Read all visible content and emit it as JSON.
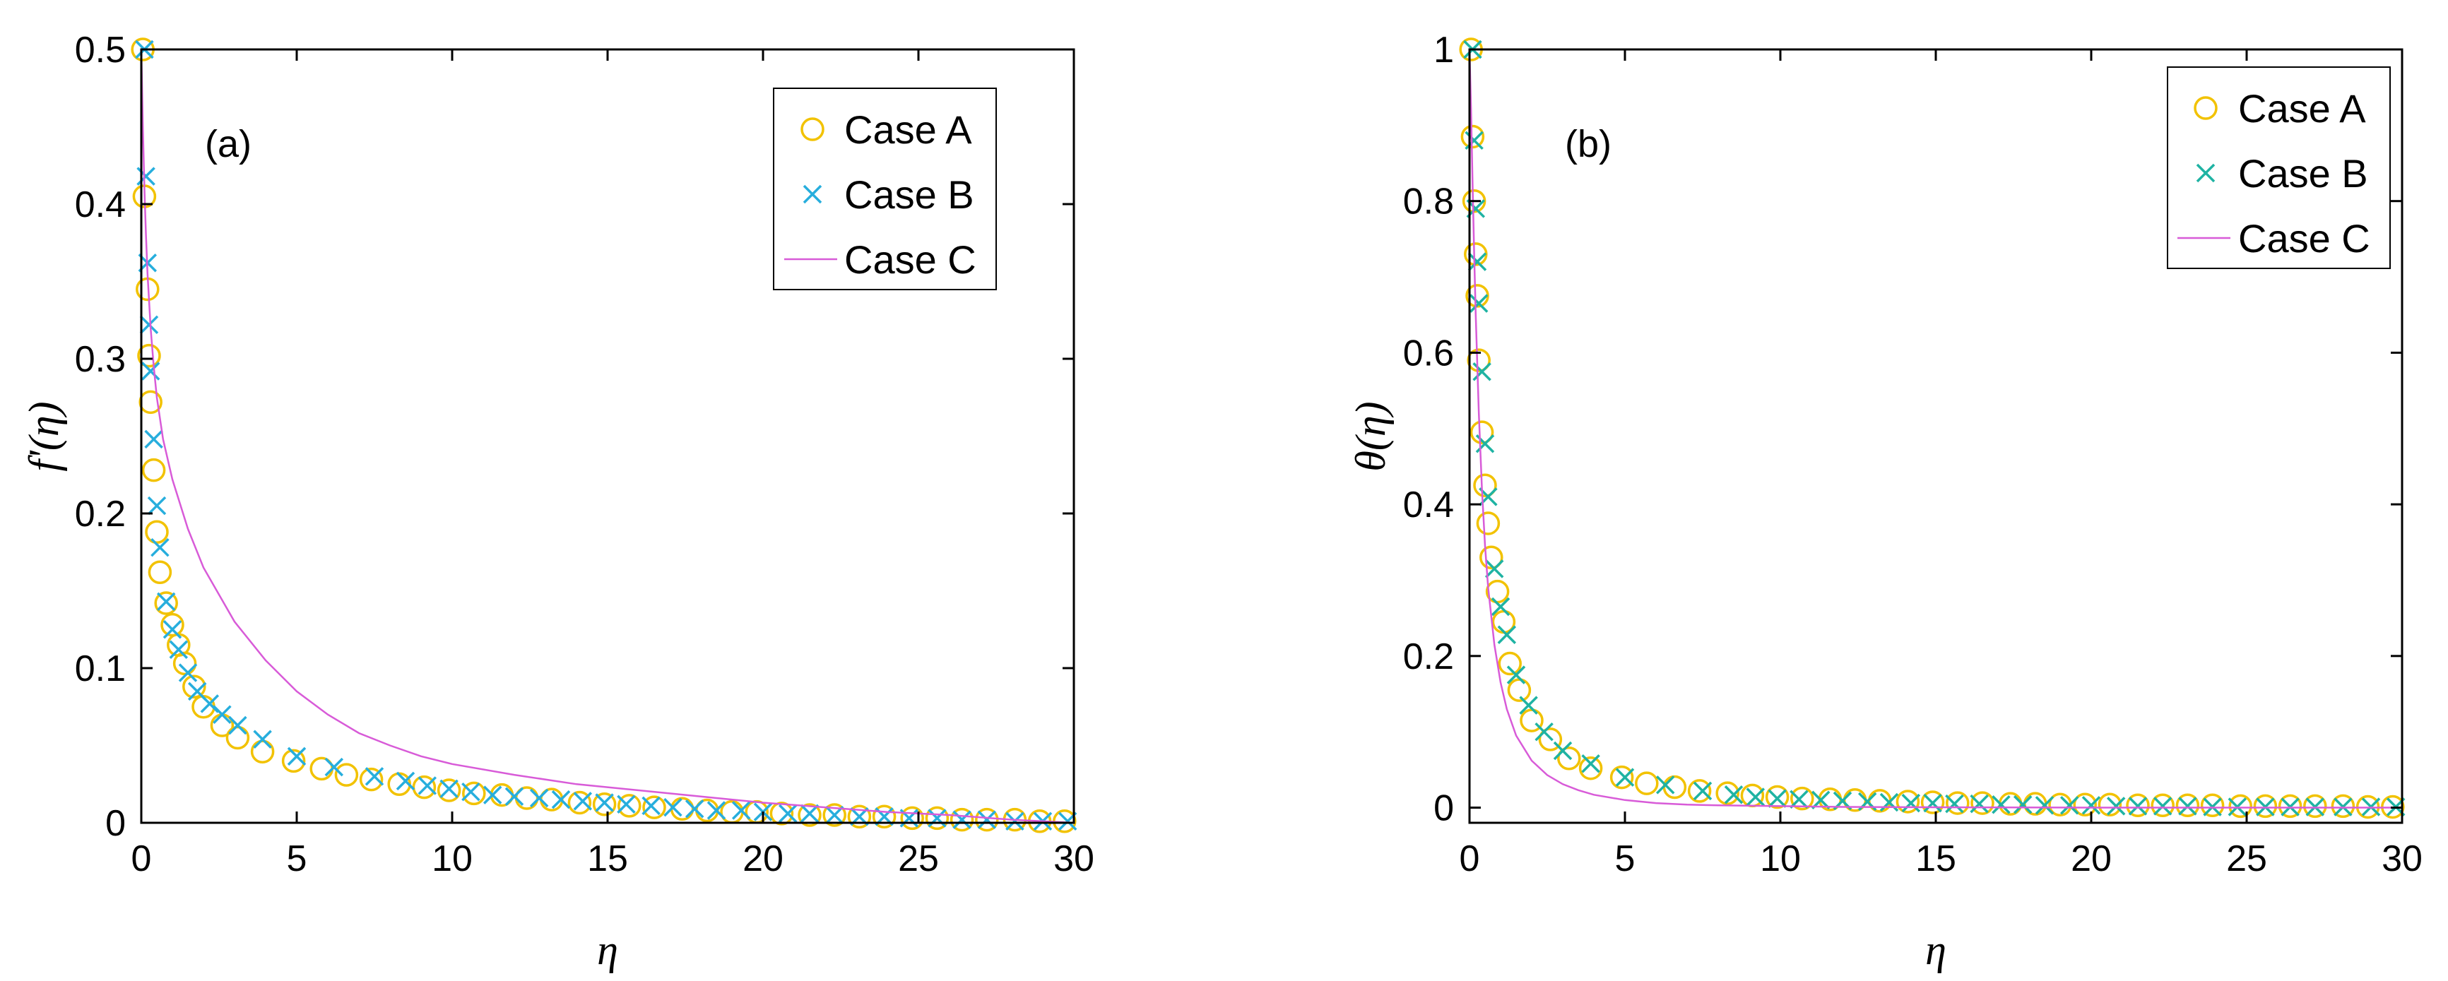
{
  "colors": {
    "case_a": "#f2c200",
    "case_b": "#27aedd",
    "case_b_panel_b": "#1fb3a3",
    "case_c": "#d85bd8",
    "axes": "#000000",
    "background": "#ffffff"
  },
  "chart_data": [
    {
      "type": "line",
      "panel_label": "(a)",
      "xlabel": "η",
      "ylabel": "f'(η)",
      "xlim": [
        0,
        30
      ],
      "ylim": [
        0,
        0.5
      ],
      "xticks": [
        0,
        5,
        10,
        15,
        20,
        25,
        30
      ],
      "yticks": [
        0,
        0.1,
        0.2,
        0.3,
        0.4,
        0.5
      ],
      "xtick_labels": [
        "0",
        "5",
        "10",
        "15",
        "20",
        "25",
        "30"
      ],
      "ytick_labels": [
        "0",
        "0.1",
        "0.2",
        "0.3",
        "0.4",
        "0.5"
      ],
      "legend_position": "top-right",
      "series": [
        {
          "name": "Case A",
          "marker": "circle",
          "x": [
            0.05,
            0.1,
            0.2,
            0.25,
            0.3,
            0.4,
            0.5,
            0.6,
            0.8,
            1.0,
            1.2,
            1.4,
            1.7,
            2.0,
            2.6,
            3.1,
            3.9,
            4.9,
            5.8,
            6.6,
            7.4,
            8.3,
            9.1,
            9.9,
            10.7,
            11.6,
            12.4,
            13.2,
            14.1,
            14.9,
            15.7,
            16.5,
            17.4,
            18.2,
            19.0,
            19.8,
            20.6,
            21.5,
            22.3,
            23.1,
            23.9,
            24.8,
            25.6,
            26.4,
            27.2,
            28.1,
            28.9,
            29.7
          ],
          "y": [
            0.5,
            0.405,
            0.345,
            0.302,
            0.272,
            0.228,
            0.188,
            0.162,
            0.142,
            0.128,
            0.115,
            0.103,
            0.088,
            0.075,
            0.063,
            0.055,
            0.046,
            0.04,
            0.035,
            0.031,
            0.028,
            0.025,
            0.023,
            0.021,
            0.019,
            0.018,
            0.016,
            0.015,
            0.013,
            0.012,
            0.011,
            0.01,
            0.009,
            0.008,
            0.007,
            0.007,
            0.006,
            0.005,
            0.005,
            0.004,
            0.004,
            0.003,
            0.003,
            0.002,
            0.002,
            0.002,
            0.001,
            0.001
          ]
        },
        {
          "name": "Case B",
          "marker": "x",
          "x": [
            0.1,
            0.15,
            0.2,
            0.25,
            0.3,
            0.4,
            0.5,
            0.6,
            0.8,
            1.0,
            1.2,
            1.5,
            1.8,
            2.2,
            2.6,
            3.1,
            3.9,
            5.0,
            6.2,
            7.5,
            8.5,
            9.2,
            9.9,
            10.6,
            11.3,
            12.0,
            12.8,
            13.5,
            14.2,
            14.9,
            15.6,
            16.4,
            17.1,
            17.8,
            18.5,
            19.3,
            20.0,
            20.8,
            21.5,
            22.3,
            23.1,
            23.9,
            24.7,
            25.6,
            26.4,
            27.2,
            28.1,
            29.0,
            29.8
          ],
          "y": [
            0.5,
            0.418,
            0.362,
            0.322,
            0.292,
            0.248,
            0.205,
            0.178,
            0.143,
            0.125,
            0.112,
            0.097,
            0.085,
            0.077,
            0.07,
            0.063,
            0.054,
            0.043,
            0.036,
            0.03,
            0.027,
            0.024,
            0.022,
            0.02,
            0.018,
            0.017,
            0.016,
            0.015,
            0.014,
            0.013,
            0.012,
            0.011,
            0.01,
            0.009,
            0.008,
            0.008,
            0.007,
            0.006,
            0.006,
            0.005,
            0.004,
            0.004,
            0.003,
            0.003,
            0.002,
            0.002,
            0.001,
            0.001,
            0.001
          ]
        },
        {
          "name": "Case C",
          "marker": "line",
          "x": [
            0,
            0.05,
            0.1,
            0.15,
            0.2,
            0.3,
            0.4,
            0.5,
            0.7,
            1.0,
            1.5,
            2.0,
            3.0,
            4.0,
            5.0,
            6.0,
            7.0,
            8.0,
            9.0,
            10.0,
            12.0,
            14.0,
            16.0,
            18.0,
            20.0,
            22.0,
            24.0,
            26.0,
            28.0,
            30.0
          ],
          "y": [
            0.5,
            0.45,
            0.41,
            0.38,
            0.355,
            0.32,
            0.295,
            0.275,
            0.248,
            0.222,
            0.19,
            0.165,
            0.13,
            0.105,
            0.085,
            0.07,
            0.058,
            0.05,
            0.043,
            0.038,
            0.031,
            0.025,
            0.021,
            0.017,
            0.013,
            0.01,
            0.007,
            0.005,
            0.002,
            0.0
          ]
        }
      ]
    },
    {
      "type": "line",
      "panel_label": "(b)",
      "xlabel": "η",
      "ylabel": "θ(η)",
      "xlim": [
        0,
        30
      ],
      "ylim": [
        -0.02,
        1.0
      ],
      "xticks": [
        0,
        5,
        10,
        15,
        20,
        25,
        30
      ],
      "yticks": [
        0,
        0.2,
        0.4,
        0.6,
        0.8,
        1.0
      ],
      "xtick_labels": [
        "0",
        "5",
        "10",
        "15",
        "20",
        "25",
        "30"
      ],
      "ytick_labels": [
        "0",
        "0.2",
        "0.4",
        "0.6",
        "0.8",
        "1"
      ],
      "legend_position": "top-right",
      "series": [
        {
          "name": "Case A",
          "marker": "circle",
          "x": [
            0.05,
            0.1,
            0.15,
            0.2,
            0.25,
            0.3,
            0.4,
            0.5,
            0.6,
            0.7,
            0.9,
            1.1,
            1.3,
            1.6,
            2.0,
            2.6,
            3.2,
            3.9,
            4.9,
            5.7,
            6.6,
            7.4,
            8.3,
            9.1,
            9.9,
            10.7,
            11.6,
            12.4,
            13.2,
            14.1,
            14.9,
            15.7,
            16.5,
            17.4,
            18.2,
            19.0,
            19.8,
            20.6,
            21.5,
            22.3,
            23.1,
            23.9,
            24.8,
            25.6,
            26.4,
            27.2,
            28.1,
            28.9,
            29.7
          ],
          "y": [
            1.0,
            0.885,
            0.8,
            0.73,
            0.675,
            0.59,
            0.495,
            0.425,
            0.375,
            0.33,
            0.285,
            0.245,
            0.19,
            0.155,
            0.115,
            0.09,
            0.065,
            0.052,
            0.04,
            0.032,
            0.027,
            0.022,
            0.019,
            0.016,
            0.014,
            0.012,
            0.011,
            0.01,
            0.009,
            0.008,
            0.007,
            0.006,
            0.006,
            0.005,
            0.005,
            0.004,
            0.004,
            0.004,
            0.003,
            0.003,
            0.003,
            0.003,
            0.002,
            0.002,
            0.002,
            0.002,
            0.002,
            0.001,
            0.001
          ]
        },
        {
          "name": "Case B",
          "marker": "x",
          "x": [
            0.1,
            0.15,
            0.2,
            0.25,
            0.3,
            0.4,
            0.5,
            0.6,
            0.8,
            1.0,
            1.2,
            1.5,
            1.9,
            2.4,
            3.0,
            3.9,
            5.0,
            6.3,
            7.5,
            8.5,
            9.2,
            9.9,
            10.6,
            11.3,
            12.0,
            12.8,
            13.5,
            14.2,
            14.9,
            15.6,
            16.4,
            17.1,
            17.8,
            18.5,
            19.3,
            20.0,
            20.8,
            21.5,
            22.3,
            23.1,
            23.9,
            24.7,
            25.6,
            26.4,
            27.2,
            28.1,
            29.0,
            29.8
          ],
          "y": [
            1.0,
            0.88,
            0.79,
            0.72,
            0.665,
            0.575,
            0.48,
            0.41,
            0.315,
            0.265,
            0.228,
            0.175,
            0.135,
            0.1,
            0.075,
            0.058,
            0.04,
            0.03,
            0.022,
            0.017,
            0.014,
            0.012,
            0.011,
            0.01,
            0.009,
            0.008,
            0.007,
            0.006,
            0.006,
            0.005,
            0.005,
            0.004,
            0.004,
            0.003,
            0.003,
            0.003,
            0.002,
            0.002,
            0.002,
            0.002,
            0.001,
            0.001,
            0.001,
            0.001,
            0.001,
            0.001,
            0.001,
            0.001
          ]
        },
        {
          "name": "Case C",
          "marker": "line",
          "x": [
            0,
            0.05,
            0.1,
            0.15,
            0.2,
            0.3,
            0.4,
            0.5,
            0.6,
            0.8,
            1.0,
            1.2,
            1.5,
            2.0,
            2.5,
            3.0,
            3.5,
            4.0,
            5.0,
            6.0,
            7.0,
            8.0,
            10.0,
            12.0,
            15.0,
            20.0,
            25.0,
            30.0
          ],
          "y": [
            1.0,
            0.92,
            0.82,
            0.73,
            0.65,
            0.52,
            0.42,
            0.345,
            0.29,
            0.215,
            0.165,
            0.13,
            0.095,
            0.062,
            0.043,
            0.031,
            0.023,
            0.017,
            0.01,
            0.006,
            0.004,
            0.003,
            0.002,
            0.001,
            0.0005,
            0.0,
            0.0,
            0.0
          ]
        }
      ]
    }
  ]
}
